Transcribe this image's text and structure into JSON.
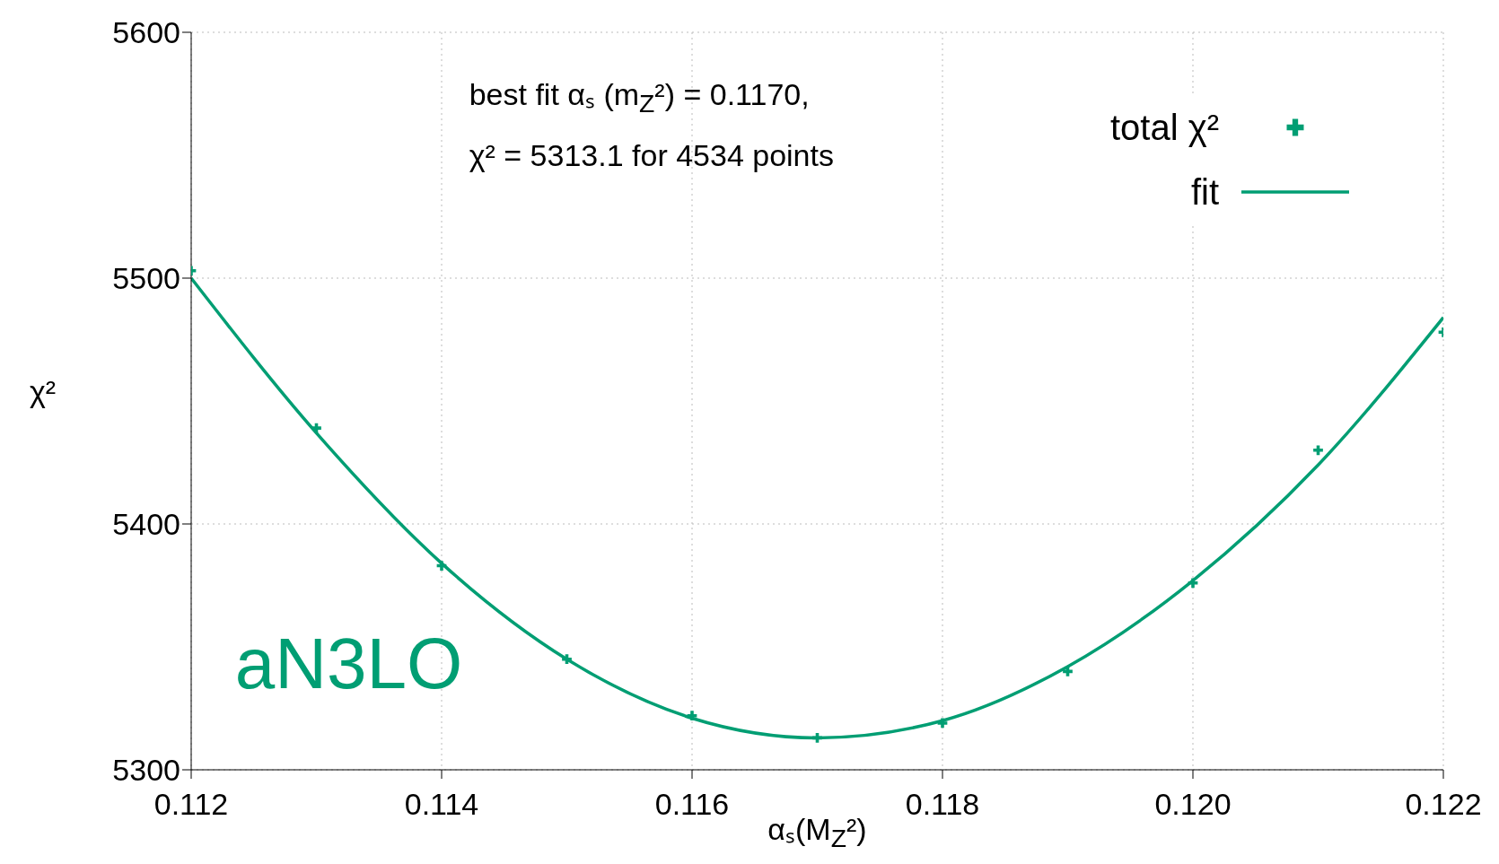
{
  "chart_data": {
    "type": "scatter",
    "xlabel": "αₛ(M$_{Z}$²)",
    "ylabel": "χ²",
    "xlim": [
      0.112,
      0.122
    ],
    "xticks": [
      0.112,
      0.114,
      0.116,
      0.118,
      {
        "value": 0.12,
        "label": "0.120"
      },
      0.122
    ],
    "ylim": [
      5300,
      5600
    ],
    "yticks": [
      5300,
      5400,
      5500,
      5600
    ],
    "grid": true,
    "legend": "top right",
    "annotations": [
      "best fit αₛ (m$_{Z}$²) = 0.1170,",
      "χ² = 5313.1 for 4534 points",
      "aN3LO"
    ],
    "series": [
      {
        "name": "total χ²",
        "type": "scatter",
        "marker": "cross",
        "color": "#009e73",
        "x": [
          0.112,
          0.113,
          0.114,
          0.115,
          0.116,
          0.117,
          0.118,
          0.119,
          0.12,
          0.121,
          0.122
        ],
        "values": [
          5503,
          5439,
          5383,
          5345,
          5322,
          5313,
          5319,
          5340,
          5376,
          5430,
          5478
        ]
      },
      {
        "name": "fit",
        "type": "line",
        "marker": "none",
        "line_style": "solid",
        "color": "#009e73",
        "x": [
          0.112,
          0.113,
          0.114,
          0.115,
          0.116,
          0.117,
          0.118,
          0.119,
          0.12,
          0.121,
          0.122
        ],
        "values": [
          5500,
          5437,
          5384,
          5345,
          5321,
          5313,
          5320,
          5342,
          5377,
          5424,
          5484
        ]
      }
    ]
  }
}
